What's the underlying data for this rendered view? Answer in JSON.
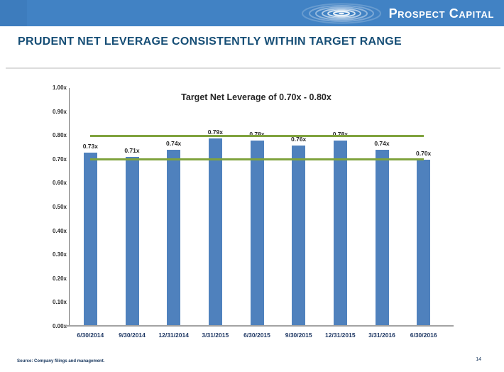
{
  "header": {
    "brand": "Prospect Capital"
  },
  "title": "PRUDENT NET LEVERAGE CONSISTENTLY WITHIN TARGET RANGE",
  "colors": {
    "header_blue": "#4182c4",
    "title_navy": "#164e76"
  },
  "chart_data": {
    "type": "bar",
    "title": "Target Net Leverage of 0.70x - 0.80x",
    "categories": [
      "6/30/2014",
      "9/30/2014",
      "12/31/2014",
      "3/31/2015",
      "6/30/2015",
      "9/30/2015",
      "12/31/2015",
      "3/31/2016",
      "6/30/2016"
    ],
    "values": [
      0.73,
      0.71,
      0.74,
      0.79,
      0.78,
      0.76,
      0.78,
      0.74,
      0.7
    ],
    "bar_labels": [
      "0.73x",
      "0.71x",
      "0.74x",
      "0.79x",
      "0.78x",
      "0.76x",
      "0.78x",
      "0.74x",
      "0.70x"
    ],
    "y_ticks": [
      "0.00x",
      "0.10x",
      "0.20x",
      "0.30x",
      "0.40x",
      "0.50x",
      "0.60x",
      "0.70x",
      "0.80x",
      "0.90x",
      "1.00x"
    ],
    "ylim": [
      0.0,
      1.0
    ],
    "xlabel": "",
    "ylabel": "",
    "grid": false,
    "legend": false,
    "target_range": {
      "low": 0.7,
      "high": 0.8
    },
    "bar_color": "#4f81bd",
    "target_line_color": "#80a33e"
  },
  "footer": {
    "source": "Source: Company filings and management.",
    "page_number": "14"
  }
}
